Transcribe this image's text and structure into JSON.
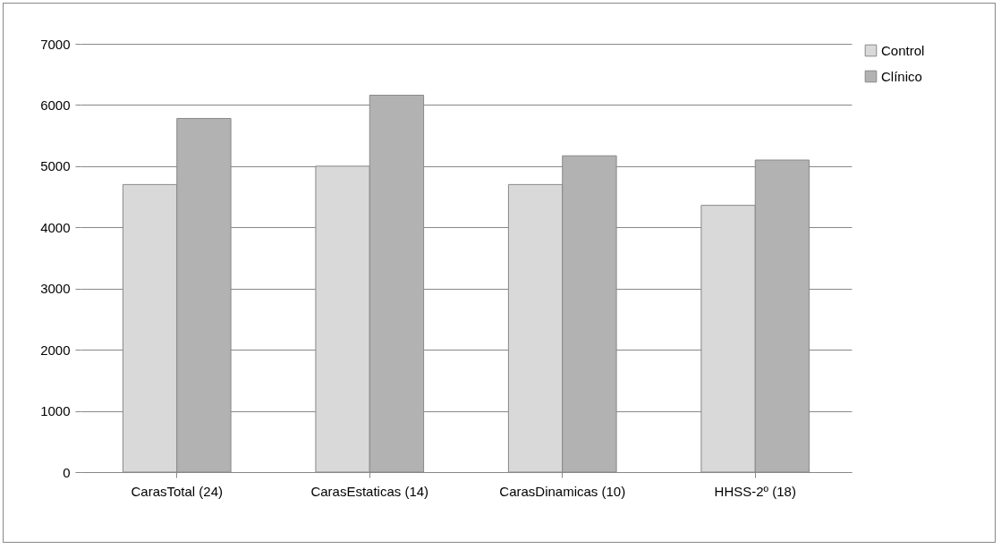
{
  "chart_data": {
    "type": "bar",
    "categories": [
      "CarasTotal (24)",
      "CarasEstaticas (14)",
      "CarasDinamicas (10)",
      "HHSS-2º (18)"
    ],
    "series": [
      {
        "name": "Control",
        "color": "#d9d9d9",
        "values": [
          4700,
          5000,
          4700,
          4360
        ]
      },
      {
        "name": "Clínico",
        "color": "#b2b2b2",
        "values": [
          5780,
          6160,
          5170,
          5100
        ]
      }
    ],
    "ylim": [
      0,
      7000
    ],
    "yticks": [
      0,
      1000,
      2000,
      3000,
      4000,
      5000,
      6000,
      7000
    ],
    "grid": "y",
    "legend": "right"
  }
}
